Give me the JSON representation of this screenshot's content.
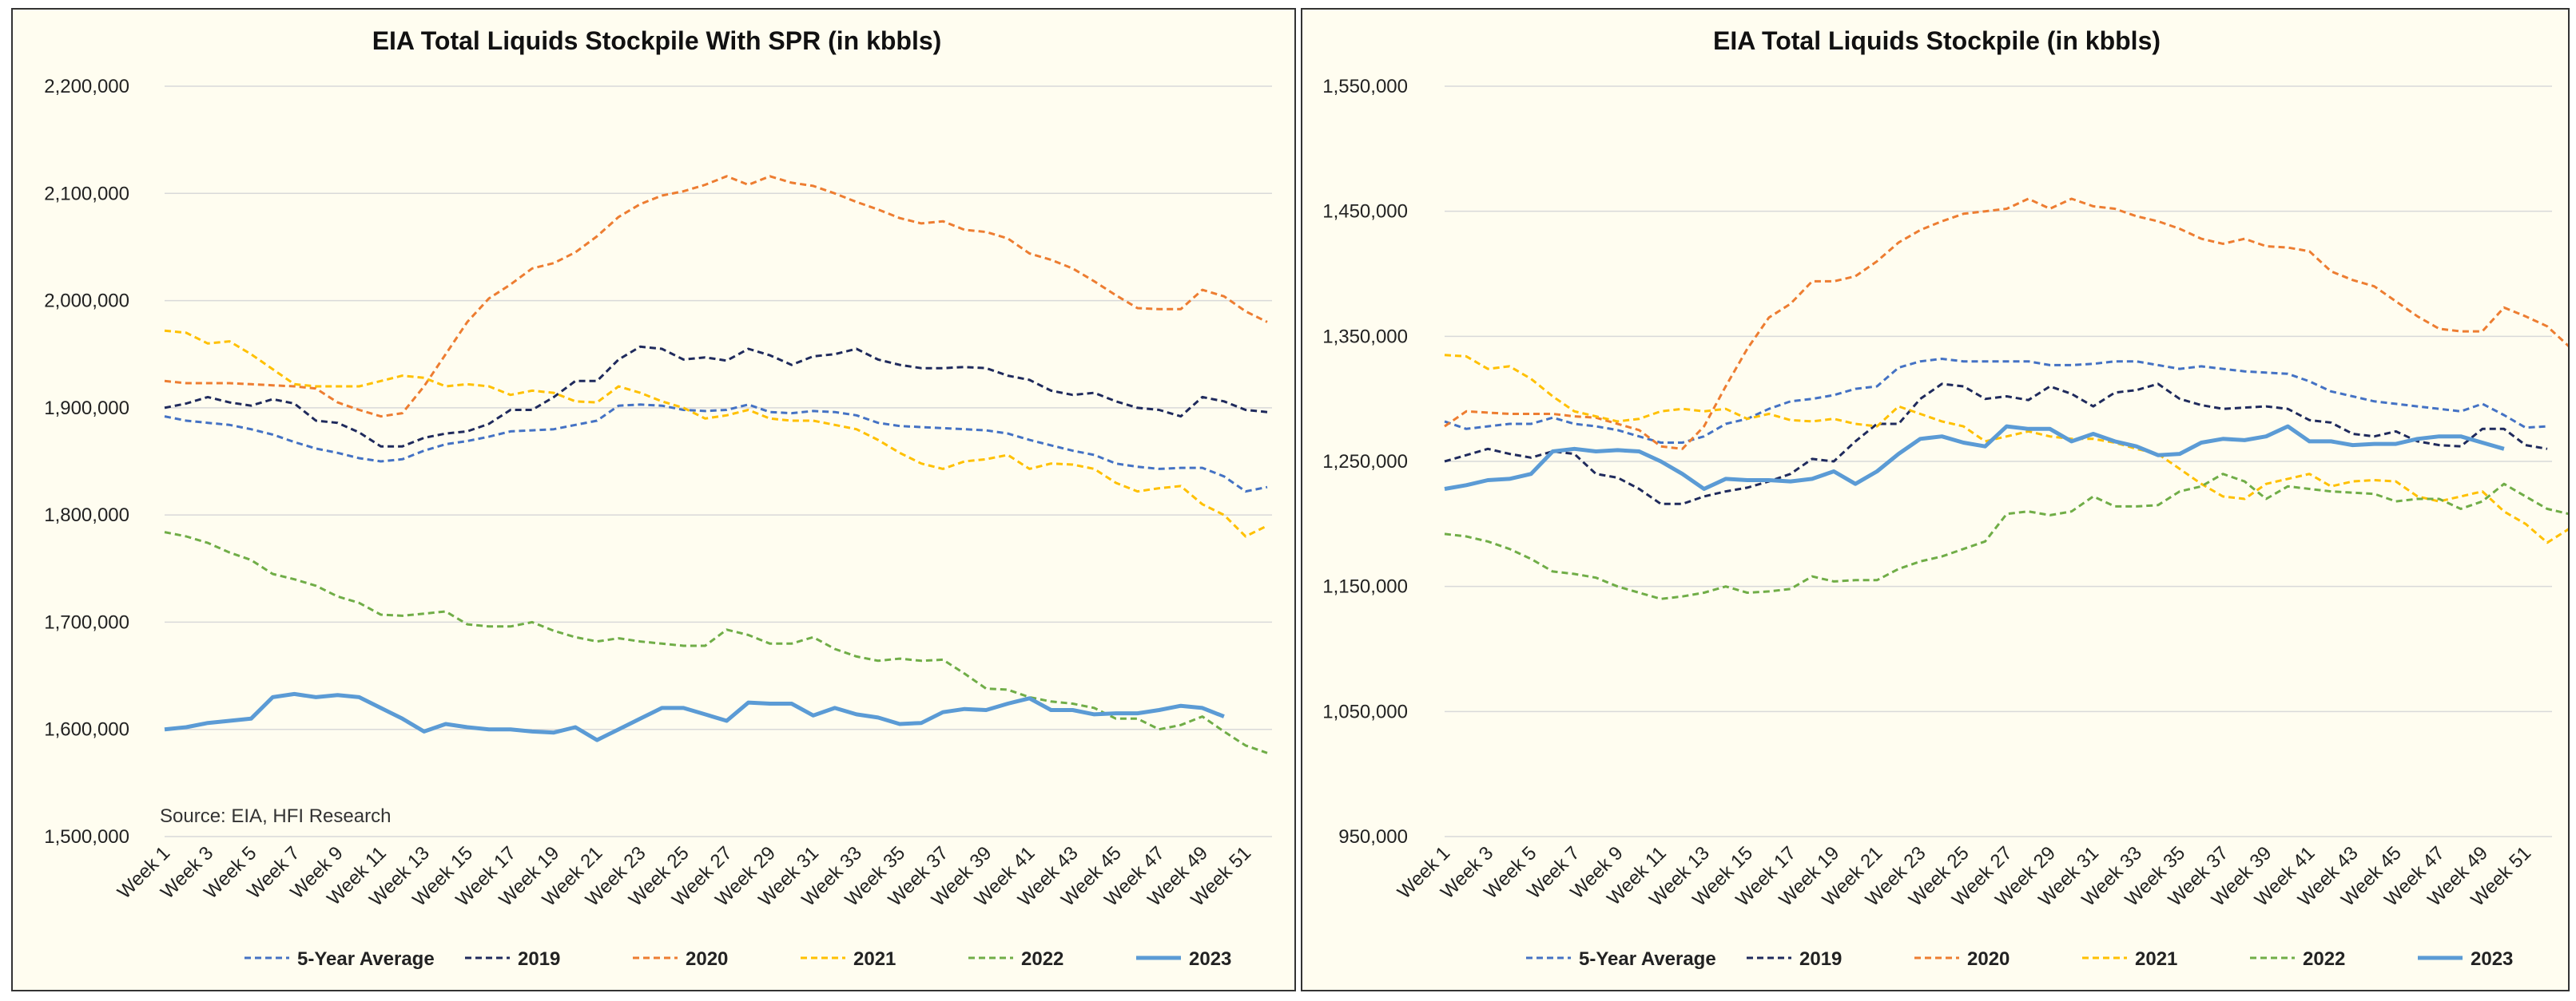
{
  "colors": {
    "avg": "#4472c4",
    "y2019": "#1f2a5c",
    "y2020": "#ed7d31",
    "y2021": "#ffc000",
    "y2022": "#70ad47",
    "y2023": "#5b9bd5"
  },
  "chart_data": [
    {
      "type": "line",
      "title": "EIA Total Liquids Stockpile With SPR (in kbbls)",
      "source": "Source: EIA, HFI Research",
      "ylim": [
        1500000,
        2200000
      ],
      "yticks": [
        1500000,
        1600000,
        1700000,
        1800000,
        1900000,
        2000000,
        2100000,
        2200000
      ],
      "ytick_labels": [
        "1,500,000",
        "1,600,000",
        "1,700,000",
        "1,800,000",
        "1,900,000",
        "2,000,000",
        "2,100,000",
        "2,200,000"
      ],
      "x_labels": [
        "Week 1",
        "Week 3",
        "Week 5",
        "Week 7",
        "Week 9",
        "Week 11",
        "Week 13",
        "Week 15",
        "Week 17",
        "Week 19",
        "Week 21",
        "Week 23",
        "Week 25",
        "Week 27",
        "Week 29",
        "Week 31",
        "Week 33",
        "Week 35",
        "Week 37",
        "Week 39",
        "Week 41",
        "Week 43",
        "Week 45",
        "Week 47",
        "Week 49",
        "Week 51"
      ],
      "weeks": 52,
      "grid": "horizontal",
      "legend": "bottom",
      "series": [
        {
          "name": "5-Year Average",
          "style": "dashed",
          "colorKey": "avg",
          "values": [
            1892000,
            1888000,
            1886000,
            1884000,
            1880000,
            1875000,
            1868000,
            1862000,
            1858000,
            1853000,
            1850000,
            1852000,
            1860000,
            1866000,
            1869000,
            1873000,
            1878000,
            1879000,
            1880000,
            1884000,
            1888000,
            1902000,
            1903000,
            1902000,
            1898000,
            1897000,
            1898000,
            1903000,
            1896000,
            1895000,
            1897000,
            1896000,
            1893000,
            1886000,
            1883000,
            1882000,
            1881000,
            1880000,
            1879000,
            1876000,
            1870000,
            1865000,
            1860000,
            1856000,
            1848000,
            1845000,
            1843000,
            1844000,
            1844000,
            1836000,
            1822000,
            1826000
          ]
        },
        {
          "name": "2019",
          "style": "dashed",
          "colorKey": "y2019",
          "values": [
            1900000,
            1904000,
            1910000,
            1905000,
            1902000,
            1908000,
            1904000,
            1888000,
            1886000,
            1877000,
            1864000,
            1864000,
            1872000,
            1876000,
            1878000,
            1885000,
            1898000,
            1898000,
            1910000,
            1925000,
            1925000,
            1945000,
            1957000,
            1955000,
            1945000,
            1947000,
            1944000,
            1955000,
            1949000,
            1940000,
            1948000,
            1950000,
            1955000,
            1945000,
            1940000,
            1937000,
            1937000,
            1938000,
            1937000,
            1930000,
            1926000,
            1916000,
            1912000,
            1914000,
            1906000,
            1900000,
            1898000,
            1892000,
            1910000,
            1906000,
            1898000,
            1896000
          ]
        },
        {
          "name": "2020",
          "style": "dashed",
          "colorKey": "y2020",
          "values": [
            1925000,
            1923000,
            1923000,
            1923000,
            1922000,
            1921000,
            1920000,
            1918000,
            1905000,
            1898000,
            1892000,
            1895000,
            1920000,
            1950000,
            1980000,
            2002000,
            2015000,
            2030000,
            2035000,
            2045000,
            2060000,
            2078000,
            2090000,
            2098000,
            2102000,
            2108000,
            2116000,
            2108000,
            2116000,
            2110000,
            2107000,
            2100000,
            2092000,
            2085000,
            2077000,
            2072000,
            2074000,
            2066000,
            2064000,
            2058000,
            2044000,
            2038000,
            2030000,
            2018000,
            2005000,
            1993000,
            1992000,
            1992000,
            2010000,
            2004000,
            1990000,
            1980000
          ]
        },
        {
          "name": "2021",
          "style": "dashed",
          "colorKey": "y2021",
          "values": [
            1972000,
            1970000,
            1960000,
            1962000,
            1950000,
            1936000,
            1922000,
            1920000,
            1920000,
            1920000,
            1925000,
            1930000,
            1928000,
            1920000,
            1922000,
            1920000,
            1912000,
            1916000,
            1914000,
            1906000,
            1905000,
            1920000,
            1914000,
            1906000,
            1900000,
            1890000,
            1893000,
            1898000,
            1890000,
            1888000,
            1888000,
            1884000,
            1880000,
            1870000,
            1858000,
            1848000,
            1843000,
            1850000,
            1852000,
            1856000,
            1843000,
            1848000,
            1847000,
            1843000,
            1830000,
            1822000,
            1825000,
            1827000,
            1810000,
            1800000,
            1780000,
            1790000
          ]
        },
        {
          "name": "2022",
          "style": "dashed",
          "colorKey": "y2022",
          "values": [
            1784000,
            1780000,
            1774000,
            1765000,
            1758000,
            1745000,
            1740000,
            1734000,
            1724000,
            1718000,
            1707000,
            1706000,
            1708000,
            1710000,
            1698000,
            1696000,
            1696000,
            1700000,
            1692000,
            1686000,
            1682000,
            1685000,
            1682000,
            1680000,
            1678000,
            1678000,
            1693000,
            1688000,
            1680000,
            1680000,
            1686000,
            1675000,
            1668000,
            1664000,
            1666000,
            1664000,
            1665000,
            1652000,
            1638000,
            1637000,
            1630000,
            1626000,
            1624000,
            1620000,
            1610000,
            1610000,
            1600000,
            1604000,
            1612000,
            1598000,
            1585000,
            1578000
          ]
        },
        {
          "name": "2023",
          "style": "solid",
          "colorKey": "y2023",
          "values": [
            1600000,
            1602000,
            1606000,
            1608000,
            1610000,
            1630000,
            1633000,
            1630000,
            1632000,
            1630000,
            1620000,
            1610000,
            1598000,
            1605000,
            1602000,
            1600000,
            1600000,
            1598000,
            1597000,
            1602000,
            1590000,
            1600000,
            1610000,
            1620000,
            1620000,
            1614000,
            1608000,
            1625000,
            1624000,
            1624000,
            1613000,
            1620000,
            1614000,
            1611000,
            1605000,
            1606000,
            1616000,
            1619000,
            1618000,
            1624000,
            1629000,
            1618000,
            1618000,
            1614000,
            1615000,
            1615000,
            1618000,
            1622000,
            1620000,
            1612000
          ]
        }
      ]
    },
    {
      "type": "line",
      "title": "EIA Total Liquids Stockpile (in kbbls)",
      "source": "",
      "ylim": [
        950000,
        1550000
      ],
      "yticks": [
        950000,
        1050000,
        1150000,
        1250000,
        1350000,
        1450000,
        1550000
      ],
      "ytick_labels": [
        "950,000",
        "1,050,000",
        "1,150,000",
        "1,250,000",
        "1,350,000",
        "1,450,000",
        "1,550,000"
      ],
      "x_labels": [
        "Week 1",
        "Week 3",
        "Week 5",
        "Week 7",
        "Week 9",
        "Week 11",
        "Week 13",
        "Week 15",
        "Week 17",
        "Week 19",
        "Week 21",
        "Week 23",
        "Week 25",
        "Week 27",
        "Week 29",
        "Week 31",
        "Week 33",
        "Week 35",
        "Week 37",
        "Week 39",
        "Week 41",
        "Week 43",
        "Week 45",
        "Week 47",
        "Week 49",
        "Week 51"
      ],
      "weeks": 52,
      "grid": "horizontal",
      "legend": "bottom",
      "series": [
        {
          "name": "5-Year Average",
          "style": "dashed",
          "colorKey": "avg",
          "values": [
            1282000,
            1276000,
            1278000,
            1280000,
            1280000,
            1285000,
            1280000,
            1278000,
            1275000,
            1270000,
            1265000,
            1265000,
            1270000,
            1280000,
            1284000,
            1292000,
            1298000,
            1300000,
            1303000,
            1308000,
            1310000,
            1325000,
            1330000,
            1332000,
            1330000,
            1330000,
            1330000,
            1330000,
            1327000,
            1327000,
            1328000,
            1330000,
            1330000,
            1327000,
            1324000,
            1326000,
            1324000,
            1322000,
            1321000,
            1320000,
            1314000,
            1306000,
            1302000,
            1298000,
            1296000,
            1294000,
            1292000,
            1290000,
            1296000,
            1287000,
            1277000,
            1278000
          ]
        },
        {
          "name": "2019",
          "style": "dashed",
          "colorKey": "y2019",
          "values": [
            1250000,
            1255000,
            1260000,
            1256000,
            1253000,
            1258000,
            1256000,
            1240000,
            1237000,
            1228000,
            1216000,
            1216000,
            1222000,
            1226000,
            1229000,
            1234000,
            1240000,
            1252000,
            1250000,
            1266000,
            1280000,
            1280000,
            1300000,
            1312000,
            1310000,
            1300000,
            1302000,
            1299000,
            1310000,
            1304000,
            1294000,
            1305000,
            1307000,
            1312000,
            1300000,
            1295000,
            1292000,
            1293000,
            1294000,
            1292000,
            1283000,
            1281000,
            1272000,
            1270000,
            1274000,
            1266000,
            1263000,
            1262000,
            1276000,
            1276000,
            1263000,
            1260000
          ]
        },
        {
          "name": "2020",
          "style": "dashed",
          "colorKey": "y2020",
          "values": [
            1278000,
            1290000,
            1289000,
            1288000,
            1288000,
            1288000,
            1286000,
            1285000,
            1280000,
            1275000,
            1262000,
            1260000,
            1278000,
            1310000,
            1340000,
            1365000,
            1376000,
            1394000,
            1394000,
            1398000,
            1410000,
            1425000,
            1435000,
            1442000,
            1448000,
            1450000,
            1452000,
            1460000,
            1452000,
            1460000,
            1454000,
            1452000,
            1446000,
            1442000,
            1436000,
            1428000,
            1424000,
            1428000,
            1422000,
            1421000,
            1418000,
            1402000,
            1395000,
            1390000,
            1378000,
            1366000,
            1356000,
            1354000,
            1354000,
            1373000,
            1366000,
            1358000,
            1342000
          ]
        },
        {
          "name": "2021",
          "style": "dashed",
          "colorKey": "y2021",
          "values": [
            1335000,
            1334000,
            1324000,
            1326000,
            1316000,
            1302000,
            1290000,
            1286000,
            1282000,
            1284000,
            1290000,
            1292000,
            1290000,
            1292000,
            1284000,
            1288000,
            1283000,
            1282000,
            1284000,
            1280000,
            1278000,
            1294000,
            1288000,
            1282000,
            1278000,
            1266000,
            1270000,
            1274000,
            1270000,
            1268000,
            1268000,
            1265000,
            1260000,
            1256000,
            1244000,
            1232000,
            1222000,
            1220000,
            1232000,
            1236000,
            1240000,
            1230000,
            1234000,
            1235000,
            1234000,
            1222000,
            1218000,
            1222000,
            1226000,
            1210000,
            1200000,
            1185000,
            1196000
          ]
        },
        {
          "name": "2022",
          "style": "dashed",
          "colorKey": "y2022",
          "values": [
            1192000,
            1190000,
            1186000,
            1180000,
            1172000,
            1162000,
            1160000,
            1157000,
            1150000,
            1145000,
            1140000,
            1142000,
            1145000,
            1150000,
            1145000,
            1146000,
            1148000,
            1158000,
            1154000,
            1155000,
            1155000,
            1164000,
            1170000,
            1174000,
            1180000,
            1186000,
            1208000,
            1210000,
            1207000,
            1210000,
            1222000,
            1214000,
            1214000,
            1215000,
            1226000,
            1230000,
            1240000,
            1234000,
            1220000,
            1230000,
            1228000,
            1226000,
            1225000,
            1224000,
            1218000,
            1220000,
            1220000,
            1212000,
            1218000,
            1232000,
            1222000,
            1212000,
            1208000
          ]
        },
        {
          "name": "2023",
          "style": "solid",
          "colorKey": "y2023",
          "values": [
            1228000,
            1231000,
            1235000,
            1236000,
            1240000,
            1258000,
            1260000,
            1258000,
            1259000,
            1258000,
            1250000,
            1240000,
            1228000,
            1236000,
            1235000,
            1235000,
            1234000,
            1236000,
            1242000,
            1232000,
            1242000,
            1256000,
            1268000,
            1270000,
            1265000,
            1262000,
            1278000,
            1276000,
            1276000,
            1266000,
            1272000,
            1266000,
            1262000,
            1255000,
            1256000,
            1265000,
            1268000,
            1267000,
            1270000,
            1278000,
            1266000,
            1266000,
            1263000,
            1264000,
            1264000,
            1268000,
            1270000,
            1270000,
            1265000,
            1260000
          ]
        }
      ]
    }
  ]
}
